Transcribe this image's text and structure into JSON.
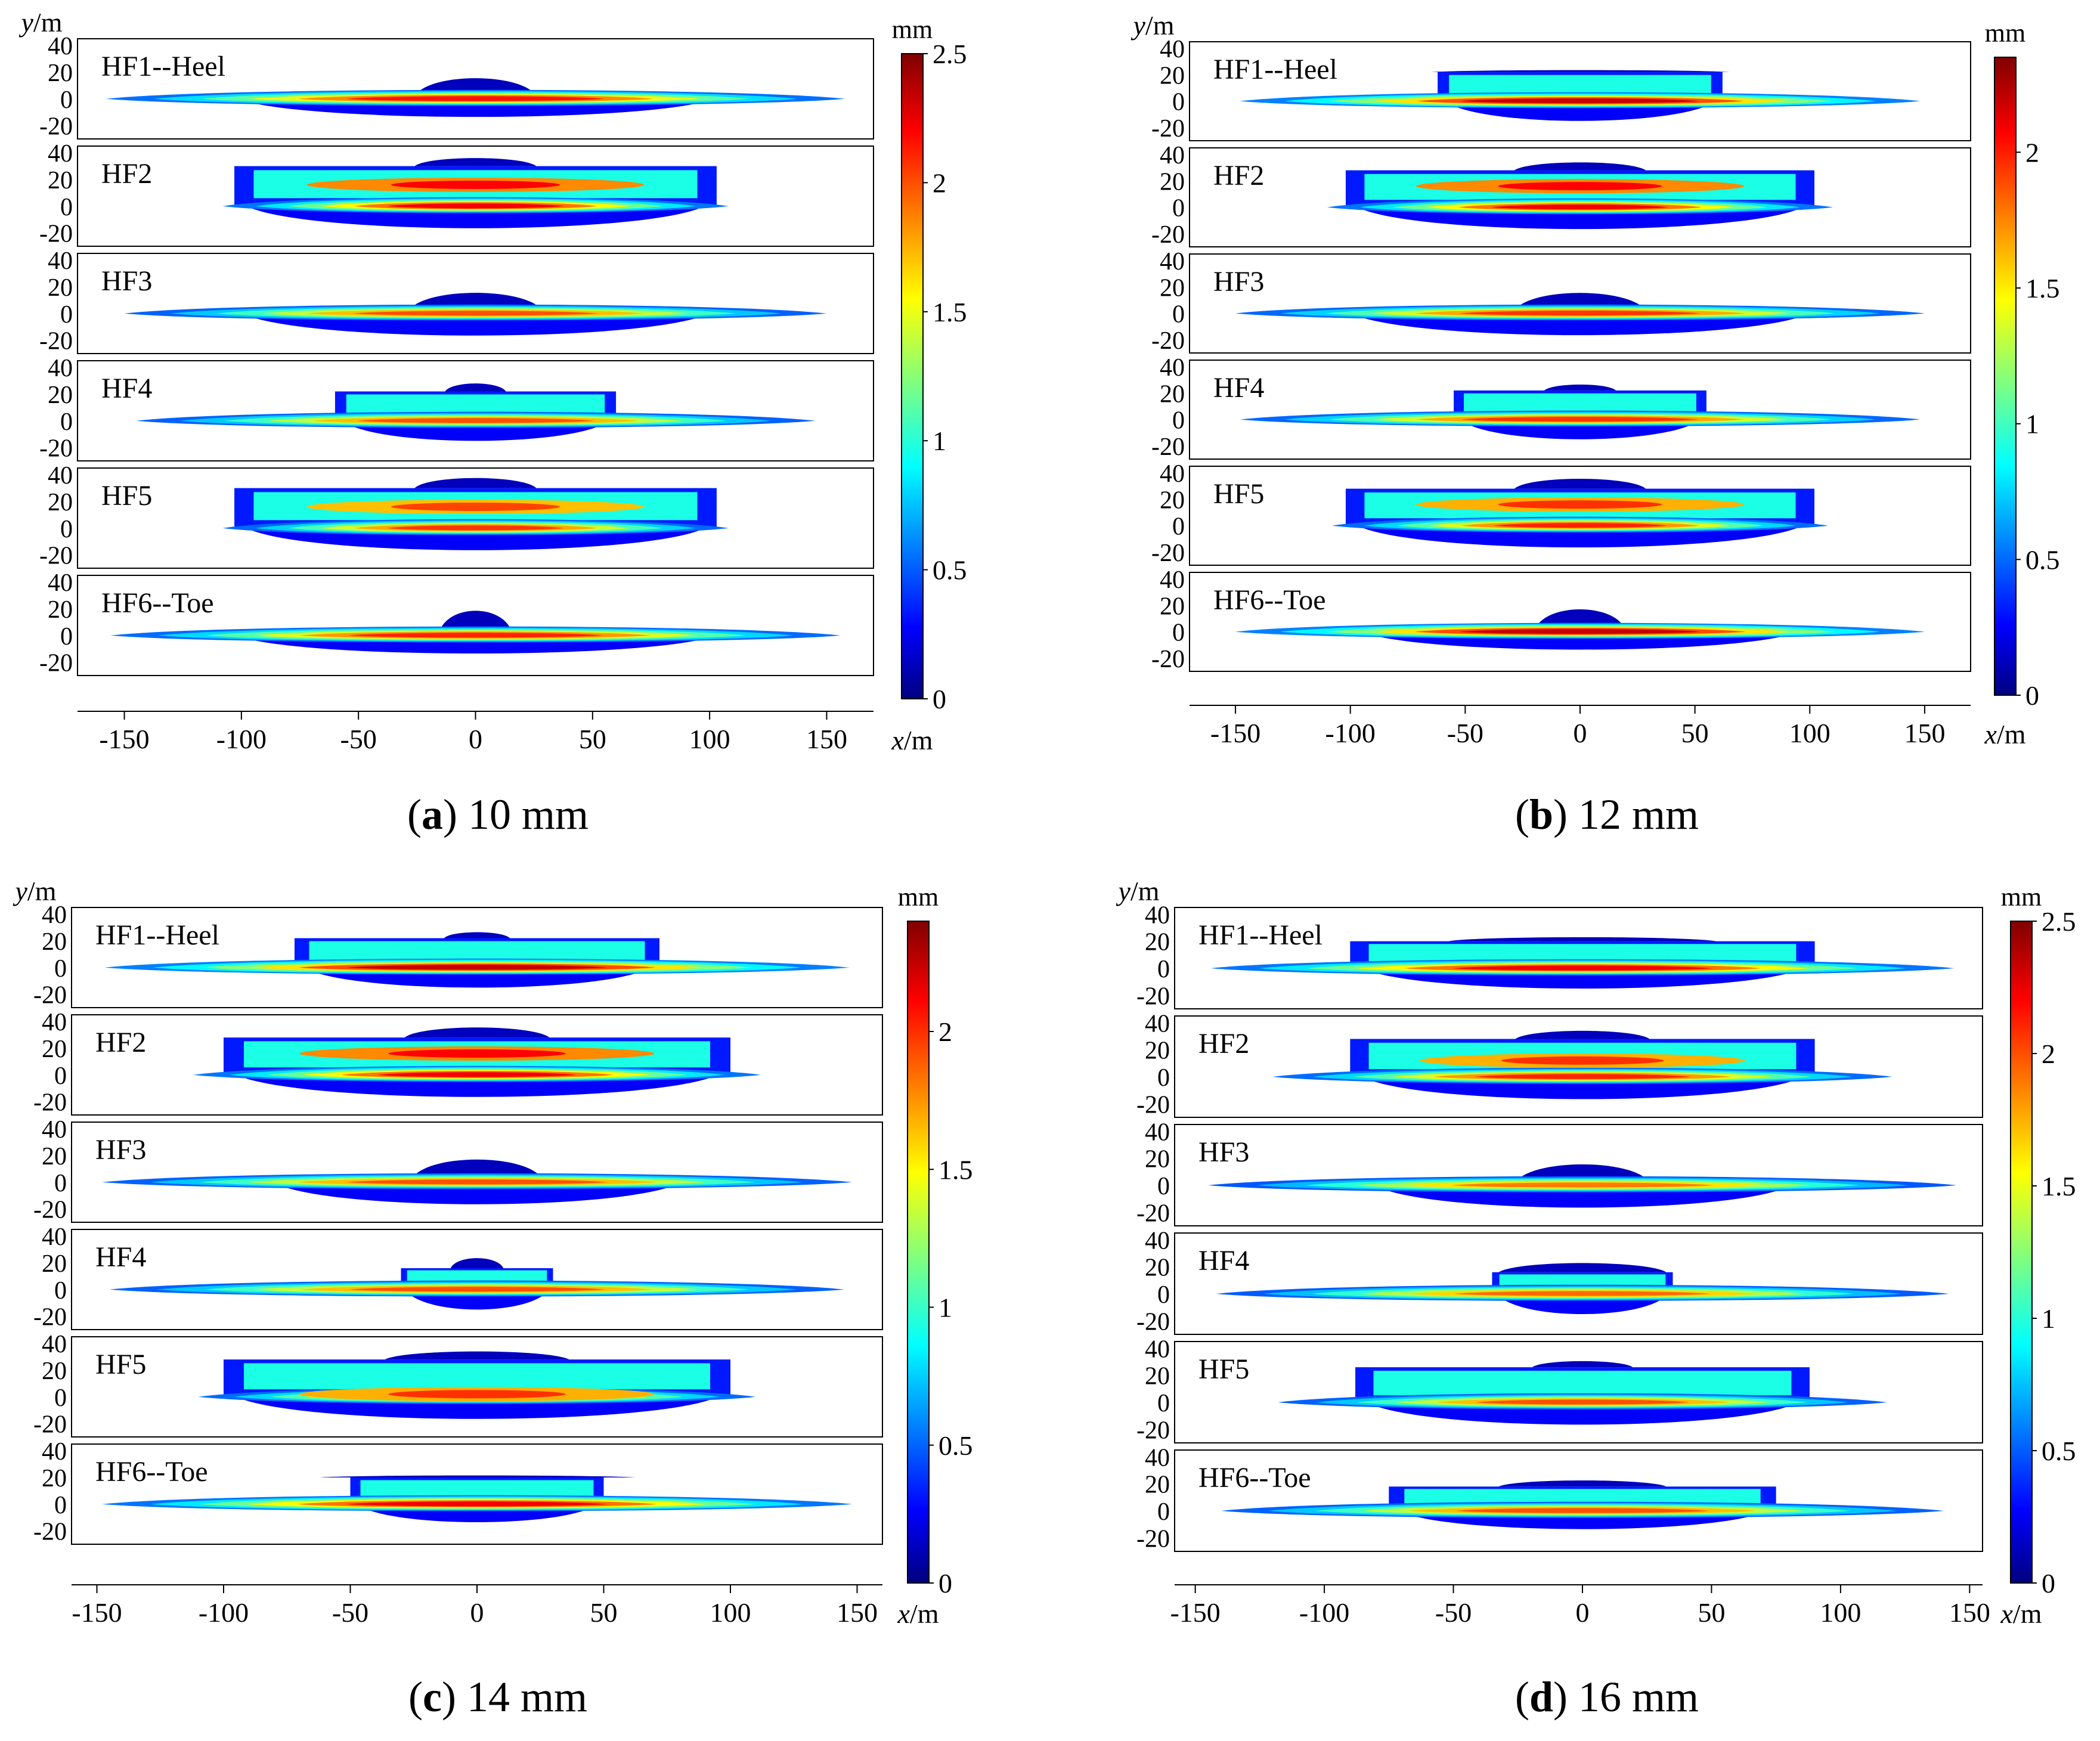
{
  "figure": {
    "panels": [
      {
        "letter": "a",
        "label": "10 mm"
      },
      {
        "letter": "b",
        "label": "12 mm"
      },
      {
        "letter": "c",
        "label": "14 mm"
      },
      {
        "letter": "d",
        "label": "16 mm"
      }
    ]
  },
  "chart_data": [
    {
      "type": "heatmap",
      "title": "(a) 10 mm",
      "xlabel": "x/m",
      "ylabel": "y/m",
      "x_ticks": [
        -150,
        -100,
        -50,
        0,
        50,
        100,
        150
      ],
      "y_ticks": [
        40,
        20,
        0,
        -20
      ],
      "xlim": [
        -170,
        170
      ],
      "ylim": [
        -30,
        45
      ],
      "colorbar": {
        "unit": "mm",
        "ticks": [
          "2.5",
          "2",
          "1.5",
          "1",
          "0.5",
          "0"
        ],
        "max": 2.5,
        "min": 0
      },
      "fractures": [
        {
          "name": "HF1--Heel",
          "half_length": 158,
          "upper_width": 107,
          "upper_height": 0,
          "cap_width": 20,
          "cap_height": 20,
          "lower_depth": -18,
          "peak_y": 0,
          "intensity": 0.92
        },
        {
          "name": "HF2",
          "half_length": 108,
          "upper_width": 103,
          "upper_height": 30,
          "cap_width": 20,
          "cap_height": 38,
          "lower_depth": -22,
          "peak_y": 16,
          "intensity": 0.95
        },
        {
          "name": "HF3",
          "half_length": 150,
          "upper_width": 105,
          "upper_height": 0,
          "cap_width": 22,
          "cap_height": 20,
          "lower_depth": -22,
          "peak_y": 0,
          "intensity": 0.85
        },
        {
          "name": "HF4",
          "half_length": 145,
          "upper_width": 60,
          "upper_height": 22,
          "cap_width": 10,
          "cap_height": 30,
          "lower_depth": -20,
          "peak_y": 0,
          "intensity": 0.85
        },
        {
          "name": "HF5",
          "half_length": 108,
          "upper_width": 103,
          "upper_height": 30,
          "cap_width": 20,
          "cap_height": 40,
          "lower_depth": -22,
          "peak_y": 16,
          "intensity": 0.88
        },
        {
          "name": "HF6--Toe",
          "half_length": 156,
          "upper_width": 108,
          "upper_height": 0,
          "cap_width": 12,
          "cap_height": 24,
          "lower_depth": -18,
          "peak_y": 0,
          "intensity": 0.9
        }
      ]
    },
    {
      "type": "heatmap",
      "title": "(b) 12 mm",
      "xlabel": "x/m",
      "ylabel": "y/m",
      "x_ticks": [
        -150,
        -100,
        -50,
        0,
        50,
        100,
        150
      ],
      "y_ticks": [
        40,
        20,
        0,
        -20
      ],
      "xlim": [
        -170,
        170
      ],
      "ylim": [
        -30,
        45
      ],
      "colorbar": {
        "unit": "mm",
        "ticks": [
          "2",
          "1.5",
          "1",
          "0.5",
          "0"
        ],
        "max": 2.35,
        "min": 0
      },
      "fractures": [
        {
          "name": "HF1--Heel",
          "half_length": 148,
          "upper_width": 62,
          "upper_height": 22,
          "cap_width": 50,
          "cap_height": 24,
          "lower_depth": -20,
          "peak_y": 0,
          "intensity": 1.0
        },
        {
          "name": "HF2",
          "half_length": 110,
          "upper_width": 102,
          "upper_height": 28,
          "cap_width": 22,
          "cap_height": 36,
          "lower_depth": -22,
          "peak_y": 16,
          "intensity": 0.95
        },
        {
          "name": "HF3",
          "half_length": 150,
          "upper_width": 105,
          "upper_height": 0,
          "cap_width": 22,
          "cap_height": 20,
          "lower_depth": -22,
          "peak_y": 0,
          "intensity": 0.88
        },
        {
          "name": "HF4",
          "half_length": 148,
          "upper_width": 55,
          "upper_height": 22,
          "cap_width": 12,
          "cap_height": 28,
          "lower_depth": -20,
          "peak_y": 0,
          "intensity": 0.88
        },
        {
          "name": "HF5",
          "half_length": 108,
          "upper_width": 102,
          "upper_height": 28,
          "cap_width": 22,
          "cap_height": 38,
          "lower_depth": -22,
          "peak_y": 16,
          "intensity": 0.9
        },
        {
          "name": "HF6--Toe",
          "half_length": 150,
          "upper_width": 100,
          "upper_height": 0,
          "cap_width": 15,
          "cap_height": 22,
          "lower_depth": -18,
          "peak_y": 0,
          "intensity": 1.0
        }
      ]
    },
    {
      "type": "heatmap",
      "title": "(c) 14 mm",
      "xlabel": "x/m",
      "ylabel": "y/m",
      "x_ticks": [
        -150,
        -100,
        -50,
        0,
        50,
        100,
        150
      ],
      "y_ticks": [
        40,
        20,
        0,
        -20
      ],
      "xlim": [
        -160,
        160
      ],
      "ylim": [
        -30,
        45
      ],
      "colorbar": {
        "unit": "mm",
        "ticks": [
          "2",
          "1.5",
          "1",
          "0.5",
          "0"
        ],
        "max": 2.4,
        "min": 0
      },
      "fractures": [
        {
          "name": "HF1--Heel",
          "half_length": 147,
          "upper_width": 72,
          "upper_height": 22,
          "cap_width": 10,
          "cap_height": 28,
          "lower_depth": -20,
          "peak_y": 0,
          "intensity": 1.0
        },
        {
          "name": "HF2",
          "half_length": 112,
          "upper_width": 100,
          "upper_height": 28,
          "cap_width": 22,
          "cap_height": 38,
          "lower_depth": -22,
          "peak_y": 16,
          "intensity": 0.95
        },
        {
          "name": "HF3",
          "half_length": 148,
          "upper_width": 85,
          "upper_height": 0,
          "cap_width": 20,
          "cap_height": 22,
          "lower_depth": -22,
          "peak_y": 0,
          "intensity": 0.85
        },
        {
          "name": "HF4",
          "half_length": 145,
          "upper_width": 30,
          "upper_height": 16,
          "cap_width": 8,
          "cap_height": 26,
          "lower_depth": -20,
          "peak_y": 0,
          "intensity": 0.85
        },
        {
          "name": "HF5",
          "half_length": 110,
          "upper_width": 100,
          "upper_height": 28,
          "cap_width": 28,
          "cap_height": 36,
          "lower_depth": -22,
          "peak_y": 2,
          "intensity": 0.9
        },
        {
          "name": "HF6--Toe",
          "half_length": 148,
          "upper_width": 50,
          "upper_height": 20,
          "cap_width": 48,
          "cap_height": 22,
          "lower_depth": -18,
          "peak_y": 0,
          "intensity": 0.95
        }
      ]
    },
    {
      "type": "heatmap",
      "title": "(d) 16 mm",
      "xlabel": "x/m",
      "ylabel": "y/m",
      "x_ticks": [
        -150,
        -100,
        -50,
        0,
        50,
        100,
        150
      ],
      "y_ticks": [
        40,
        20,
        0,
        -20
      ],
      "xlim": [
        -158,
        155
      ],
      "ylim": [
        -30,
        45
      ],
      "colorbar": {
        "unit": "mm",
        "ticks": [
          "2.5",
          "2",
          "1.5",
          "1",
          "0.5",
          "0"
        ],
        "max": 2.5,
        "min": 0
      },
      "fractures": [
        {
          "name": "HF1--Heel",
          "half_length": 144,
          "upper_width": 90,
          "upper_height": 20,
          "cap_width": 40,
          "cap_height": 24,
          "lower_depth": -20,
          "peak_y": 0,
          "intensity": 0.95
        },
        {
          "name": "HF2",
          "half_length": 120,
          "upper_width": 90,
          "upper_height": 28,
          "cap_width": 20,
          "cap_height": 36,
          "lower_depth": -22,
          "peak_y": 12,
          "intensity": 0.9
        },
        {
          "name": "HF3",
          "half_length": 145,
          "upper_width": 85,
          "upper_height": 0,
          "cap_width": 20,
          "cap_height": 20,
          "lower_depth": -22,
          "peak_y": 0,
          "intensity": 0.8
        },
        {
          "name": "HF4",
          "half_length": 142,
          "upper_width": 35,
          "upper_height": 16,
          "cap_width": 25,
          "cap_height": 25,
          "lower_depth": -20,
          "peak_y": 0,
          "intensity": 0.82
        },
        {
          "name": "HF5",
          "half_length": 118,
          "upper_width": 88,
          "upper_height": 26,
          "cap_width": 15,
          "cap_height": 32,
          "lower_depth": -22,
          "peak_y": 0,
          "intensity": 0.85
        },
        {
          "name": "HF6--Toe",
          "half_length": 140,
          "upper_width": 75,
          "upper_height": 18,
          "cap_width": 25,
          "cap_height": 24,
          "lower_depth": -18,
          "peak_y": 0,
          "intensity": 0.85
        }
      ]
    }
  ]
}
